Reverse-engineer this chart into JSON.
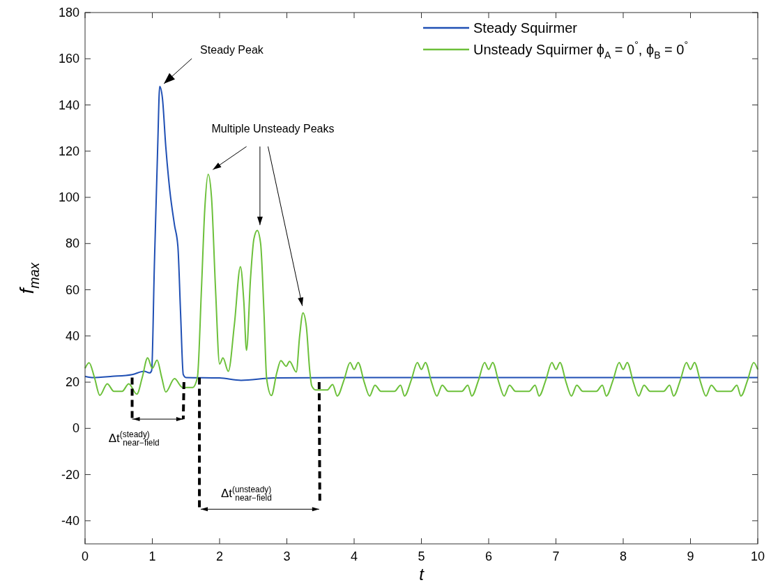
{
  "chart_data": {
    "type": "line",
    "xlabel": "t",
    "ylabel": "f$_{max}$",
    "xlim": [
      0,
      10
    ],
    "ylim": [
      -50,
      180
    ],
    "xticks": [
      0,
      1,
      2,
      3,
      4,
      5,
      6,
      7,
      8,
      9,
      10
    ],
    "yticks": [
      -40,
      -20,
      0,
      20,
      40,
      60,
      80,
      100,
      120,
      140,
      160,
      180
    ],
    "grid": false,
    "legend": "top right",
    "marker": "none",
    "line_style": "solid",
    "annotations": [
      {
        "text": "Steady Peak",
        "x": 1.11,
        "y": 148
      },
      "Multiple Unsteady Peaks",
      {
        "text": "Δt$^{(steady)}$$_{near−field}$",
        "x": 0.7,
        "y": 22
      },
      "Δt$^{(unsteady)}$$_{near−field}$"
    ],
    "series": [
      {
        "name": "Steady Squirmer",
        "color": "#1f4fb4",
        "x": [
          0,
          0.1,
          0.4,
          0.7,
          0.88,
          0.96,
          0.99,
          1.03,
          1.08,
          1.11,
          1.15,
          1.2,
          1.26,
          1.33,
          1.38,
          1.42,
          1.46,
          1.5,
          2.0,
          2.32,
          2.8,
          4,
          10
        ],
        "values": [
          22.5,
          22,
          22.5,
          23.3,
          24.7,
          24,
          25,
          70,
          122,
          148,
          143,
          122,
          103,
          88,
          78.8,
          50,
          23.3,
          22,
          21.8,
          20.8,
          21.8,
          22,
          22
        ]
      },
      {
        "name": "Unsteady Squirmer ϕ$_{A}$ = 0$^{°}$, ϕ$_{B}$ = 0$^{°}$",
        "color": "#6cc03a",
        "x": [
          0,
          0.06,
          0.14,
          0.22,
          0.33,
          0.43,
          0.55,
          0.65,
          0.77,
          0.85,
          0.93,
          1.0,
          1.07,
          1.14,
          1.2,
          1.33,
          1.45,
          1.6,
          1.67,
          1.73,
          1.78,
          1.83,
          1.88,
          1.94,
          2.0,
          2.05,
          2.13,
          2.22,
          2.31,
          2.36,
          2.4,
          2.46,
          2.51,
          2.56,
          2.61,
          2.66,
          2.7,
          2.77,
          2.85,
          2.91,
          2.99,
          3.04,
          3.14,
          3.19,
          3.24,
          3.29,
          3.34,
          3.37,
          3.43,
          3.6,
          3.68,
          3.75,
          3.85,
          3.94,
          4.0,
          4.06,
          4.15,
          4.23,
          4.31,
          4.4,
          4.5,
          4.6,
          4.69,
          4.75,
          4.85,
          4.94,
          5.0,
          5.06,
          5.15,
          5.23,
          5.31,
          5.4,
          5.5,
          5.6,
          5.69,
          5.75,
          5.85,
          5.94,
          6.0,
          6.06,
          6.15,
          6.23,
          6.31,
          6.4,
          6.5,
          6.6,
          6.69,
          6.75,
          6.85,
          6.94,
          7.0,
          7.06,
          7.15,
          7.23,
          7.31,
          7.4,
          7.5,
          7.6,
          7.69,
          7.75,
          7.85,
          7.94,
          8.0,
          8.06,
          8.15,
          8.23,
          8.31,
          8.4,
          8.5,
          8.6,
          8.69,
          8.75,
          8.85,
          8.94,
          9.0,
          9.06,
          9.15,
          9.23,
          9.31,
          9.4,
          9.5,
          9.6,
          9.69,
          9.75,
          9.85,
          9.94,
          10.0
        ],
        "values": [
          26,
          28.4,
          22,
          14.3,
          19.3,
          16,
          16,
          19.3,
          14.8,
          22,
          30.5,
          26,
          29.5,
          22,
          15.7,
          21.5,
          17.7,
          17.7,
          22,
          60,
          95,
          110,
          100,
          60,
          27.8,
          30.5,
          24.7,
          45,
          70,
          55,
          33.8,
          65,
          82,
          85.7,
          80,
          50,
          21.4,
          14.2,
          24,
          29.3,
          26.9,
          29,
          24.4,
          40,
          50,
          44,
          25,
          18.4,
          16.6,
          16.6,
          19,
          14,
          21,
          28.5,
          25.5,
          28.5,
          20,
          14,
          18.7,
          16,
          16,
          16,
          18.7,
          14,
          21,
          28.5,
          25.5,
          28.5,
          20,
          14,
          18.7,
          16,
          16,
          16,
          18.7,
          14,
          21,
          28.5,
          25.5,
          28.5,
          20,
          14,
          18.7,
          16,
          16,
          16,
          18.7,
          14,
          21,
          28.5,
          25.5,
          28.5,
          20,
          14,
          18.7,
          16,
          16,
          16,
          18.7,
          14,
          21,
          28.5,
          25.5,
          28.5,
          20,
          14,
          18.7,
          16,
          16,
          16,
          18.7,
          14,
          21,
          28.5,
          25.5,
          28.5,
          20,
          14,
          18.7,
          16,
          16,
          16,
          18.7,
          14,
          21,
          28.5,
          25.5
        ]
      }
    ]
  }
}
